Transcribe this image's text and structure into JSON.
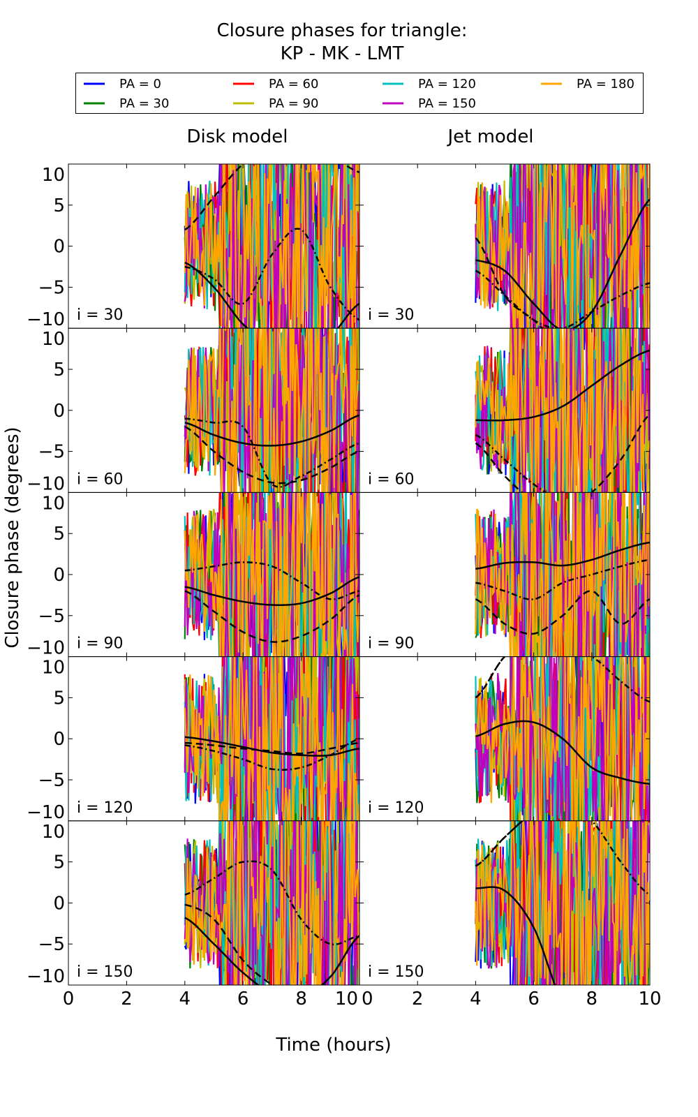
{
  "chart_data": {
    "type": "line",
    "title": [
      "Closure phases for triangle:",
      "KP - MK - LMT"
    ],
    "xlabel": "Time (hours)",
    "ylabel": "Closure phase (degrees)",
    "xlim": [
      0,
      10
    ],
    "ylim": [
      -10,
      10
    ],
    "xticks": [
      "0",
      "2",
      "4",
      "6",
      "8",
      "10"
    ],
    "yticks": [
      "10",
      "5",
      "0",
      "−5",
      "−10"
    ],
    "column_titles": [
      "Disk model",
      "Jet model"
    ],
    "row_labels": [
      "i = 30",
      "i = 60",
      "i = 90",
      "i = 120",
      "i = 150"
    ],
    "legend": {
      "placement": "top",
      "entries": [
        {
          "label": "PA = 0",
          "color": "#0000ff"
        },
        {
          "label": "PA = 30",
          "color": "#008000"
        },
        {
          "label": "PA = 60",
          "color": "#ff0000"
        },
        {
          "label": "PA = 90",
          "color": "#bfbf00"
        },
        {
          "label": "PA = 120",
          "color": "#00bfbf"
        },
        {
          "label": "PA = 150",
          "color": "#bf00bf"
        },
        {
          "label": "PA = 180",
          "color": "#ffa500"
        }
      ]
    },
    "data_x_range": [
      4,
      10
    ],
    "model_curves_x": [
      4,
      5,
      6,
      7,
      8,
      9,
      10
    ],
    "panels": [
      {
        "model": "Disk model",
        "i": 30,
        "solid": [
          -2,
          -5,
          -9.5,
          -12,
          -13,
          -11,
          -7
        ],
        "dashed": [
          2,
          6,
          10,
          12,
          12,
          11,
          9
        ],
        "dashdot": [
          -2.5,
          -4,
          -7,
          -1,
          2,
          -5,
          -9
        ]
      },
      {
        "model": "Jet model",
        "i": 30,
        "solid": [
          -1.7,
          -3,
          -7,
          -10.2,
          -8,
          -1,
          5.7
        ],
        "dashed": [
          1,
          -6,
          -9,
          -12,
          -12,
          -12,
          -12
        ],
        "dashdot": [
          -3,
          -6,
          -9,
          -10,
          -8,
          -6,
          -4.5
        ]
      },
      {
        "model": "Disk model",
        "i": 60,
        "solid": [
          -1.5,
          -3,
          -4,
          -4.3,
          -3.8,
          -2.5,
          -0.6
        ],
        "dashed": [
          -2,
          -5,
          -7.5,
          -8.8,
          -8.5,
          -7,
          -5
        ],
        "dashdot": [
          -1,
          -1.5,
          -2,
          -9,
          -8,
          -6,
          -4
        ]
      },
      {
        "model": "Jet model",
        "i": 60,
        "solid": [
          -1.2,
          -1.2,
          -0.8,
          0.5,
          3,
          5.5,
          7.3
        ],
        "dashed": [
          -4,
          -8,
          -11,
          -12,
          -10,
          -6,
          -0.5
        ],
        "dashdot": [
          -3,
          -6,
          -9,
          -11,
          -11,
          -11,
          -10
        ]
      },
      {
        "model": "Disk model",
        "i": 90,
        "solid": [
          -1.5,
          -2.5,
          -3.3,
          -3.7,
          -3.5,
          -2.3,
          -0.3
        ],
        "dashed": [
          -2,
          -4.5,
          -7,
          -8.2,
          -7.5,
          -5.5,
          -2.5
        ],
        "dashdot": [
          0.5,
          1,
          1.5,
          1,
          -1,
          -3,
          -2
        ]
      },
      {
        "model": "Jet model",
        "i": 90,
        "solid": [
          0.7,
          1.4,
          1.5,
          1.1,
          1.8,
          3,
          3.9
        ],
        "dashed": [
          -3,
          -6,
          -7.2,
          -5,
          -2,
          -6,
          -3
        ],
        "dashdot": [
          -1,
          -2,
          -3,
          -1,
          0,
          1,
          1.8
        ]
      },
      {
        "model": "Disk model",
        "i": 120,
        "solid": [
          0.2,
          -0.3,
          -1,
          -1.7,
          -2,
          -2,
          -1.2
        ],
        "dashed": [
          -0.5,
          -0.8,
          -1.2,
          -1.5,
          -1.8,
          -1.2,
          -0.5
        ],
        "dashdot": [
          -0.8,
          -1.5,
          -2.5,
          -3.7,
          -3.5,
          -2,
          0
        ]
      },
      {
        "model": "Jet model",
        "i": 120,
        "solid": [
          0.3,
          1.8,
          2,
          0,
          -3.5,
          -4.8,
          -5.5
        ],
        "dashed": [
          5,
          10,
          12,
          12,
          12,
          12,
          12
        ],
        "dashdot": [
          5,
          10,
          12,
          11,
          10,
          7,
          4.5
        ]
      },
      {
        "model": "Disk model",
        "i": 150,
        "solid": [
          -1.8,
          -5,
          -8.5,
          -11,
          -11.5,
          -9,
          -4
        ],
        "dashed": [
          -0.2,
          -2,
          -7,
          -10,
          -12,
          -12,
          -12
        ],
        "dashdot": [
          1,
          3,
          5,
          4,
          -2,
          -5,
          -4
        ]
      },
      {
        "model": "Jet model",
        "i": 150,
        "solid": [
          1.8,
          1.5,
          -3,
          -12,
          -14,
          -14,
          -14
        ],
        "dashed": [
          4.5,
          8,
          11,
          12,
          12,
          12,
          12
        ],
        "dashdot": [
          4.5,
          8,
          11,
          12,
          10,
          5,
          1
        ]
      }
    ]
  }
}
